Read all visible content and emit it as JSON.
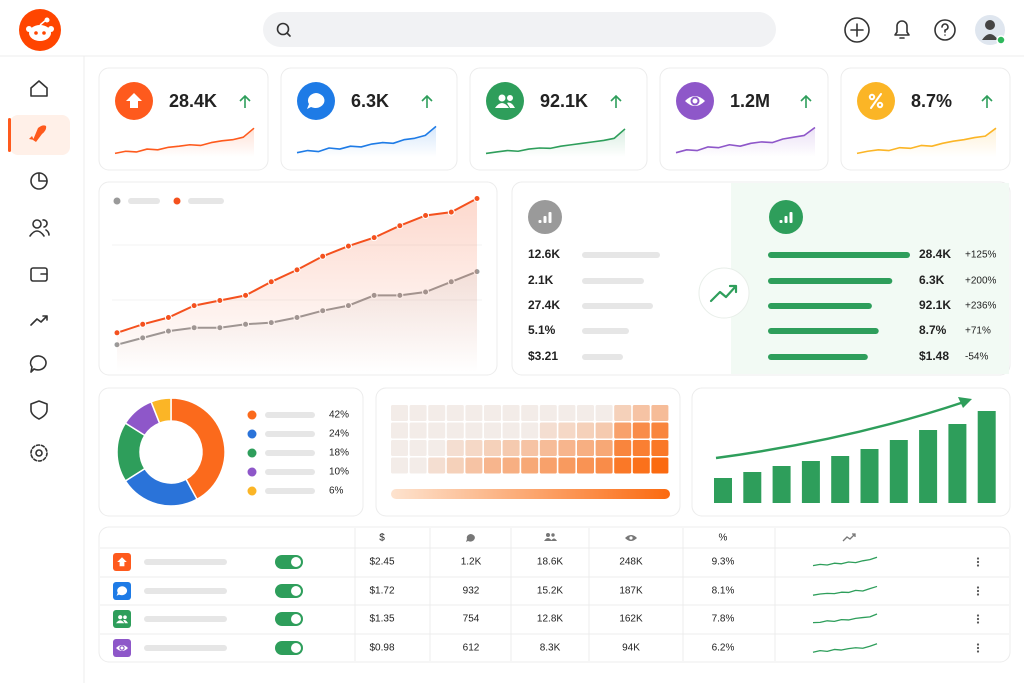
{
  "kpis": {
    "ylim": [
      0,
      100
    ],
    "cards": [
      {
        "value": "28.4K",
        "color": "#fe5a1d",
        "trend": [
          10,
          16,
          14,
          22,
          20,
          27,
          30,
          34,
          32,
          40,
          45,
          48,
          55,
          80
        ]
      },
      {
        "value": "6.3K",
        "color": "#1e7be6",
        "trend": [
          12,
          18,
          15,
          25,
          22,
          30,
          28,
          36,
          40,
          38,
          48,
          52,
          60,
          85
        ]
      },
      {
        "value": "92.1K",
        "color": "#2e9e5b",
        "trend": [
          10,
          14,
          18,
          16,
          22,
          25,
          24,
          30,
          34,
          38,
          42,
          46,
          52,
          78
        ]
      },
      {
        "value": "1.2M",
        "color": "#8e57c9",
        "trend": [
          12,
          20,
          18,
          28,
          26,
          34,
          30,
          38,
          42,
          40,
          50,
          55,
          60,
          82
        ]
      },
      {
        "value": "8.7%",
        "color": "#fbb526",
        "trend": [
          10,
          16,
          20,
          18,
          26,
          24,
          32,
          30,
          38,
          44,
          48,
          54,
          58,
          80
        ]
      }
    ]
  },
  "trend_chart": {
    "ylim": [
      0,
      100
    ],
    "series": [
      {
        "color": "#9a9a9a",
        "values": [
          9,
          13,
          17,
          19,
          19,
          21,
          22,
          25,
          29,
          32,
          38,
          38,
          40,
          46,
          52
        ]
      },
      {
        "color": "#f4511e",
        "values": [
          16,
          21,
          25,
          32,
          35,
          38,
          46,
          53,
          61,
          67,
          72,
          79,
          85,
          87,
          95
        ]
      }
    ]
  },
  "comparison": {
    "left": [
      "12.6K",
      "2.1K",
      "27.4K",
      "5.1%",
      "$3.21"
    ],
    "right": [
      {
        "value": "28.4K",
        "change": "+125%",
        "level": 100
      },
      {
        "value": "6.3K",
        "change": "+200%",
        "level": 87
      },
      {
        "value": "92.1K",
        "change": "+236%",
        "level": 72
      },
      {
        "value": "8.7%",
        "change": "+71%",
        "level": 77
      },
      {
        "value": "$1.48",
        "change": "-54%",
        "level": 69
      }
    ]
  },
  "donut": {
    "values": [
      42,
      24,
      18,
      10,
      6
    ],
    "value_labels": [
      "42%",
      "24%",
      "18%",
      "10%",
      "6%"
    ],
    "colors": [
      "#fb6a1c",
      "#2a73d9",
      "#2e9e5b",
      "#8e57c9",
      "#fbb526"
    ]
  },
  "heatmap": {
    "range": [
      0,
      100
    ],
    "rows": [
      [
        5,
        5,
        5,
        5,
        5,
        5,
        5,
        5,
        5,
        5,
        5,
        5,
        25,
        35,
        40
      ],
      [
        5,
        5,
        5,
        5,
        5,
        5,
        5,
        5,
        15,
        20,
        25,
        30,
        60,
        75,
        80
      ],
      [
        5,
        5,
        5,
        15,
        20,
        25,
        30,
        35,
        40,
        45,
        50,
        55,
        80,
        85,
        90
      ],
      [
        5,
        5,
        15,
        25,
        35,
        45,
        50,
        55,
        60,
        65,
        70,
        75,
        90,
        95,
        100
      ]
    ]
  },
  "growth_bars": {
    "ylim": [
      0,
      100
    ],
    "color": "#2e9e5b",
    "values": [
      25,
      31,
      37,
      42,
      47,
      54,
      63,
      73,
      79,
      92
    ]
  },
  "table": {
    "headers": {
      "price": "$",
      "rate": "%"
    },
    "trend_ylim": [
      0,
      100
    ],
    "rows": [
      {
        "icon_color": "#fe5a1d",
        "price": "$2.45",
        "comments": "1.2K",
        "members": "18.6K",
        "views": "248K",
        "rate": "9.3%",
        "trend": [
          20,
          30,
          25,
          40,
          35,
          50,
          45,
          60,
          70,
          90
        ]
      },
      {
        "icon_color": "#1e7be6",
        "price": "$1.72",
        "comments": "932",
        "members": "15.2K",
        "views": "187K",
        "rate": "8.1%",
        "trend": [
          15,
          25,
          30,
          28,
          40,
          38,
          55,
          50,
          70,
          88
        ]
      },
      {
        "icon_color": "#2e9e5b",
        "price": "$1.35",
        "comments": "754",
        "members": "12.8K",
        "views": "162K",
        "rate": "7.8%",
        "trend": [
          20,
          22,
          35,
          30,
          45,
          42,
          55,
          62,
          68,
          92
        ]
      },
      {
        "icon_color": "#8e57c9",
        "price": "$0.98",
        "comments": "612",
        "members": "8.3K",
        "views": "94K",
        "rate": "6.2%",
        "trend": [
          15,
          28,
          22,
          38,
          33,
          45,
          52,
          48,
          65,
          85
        ]
      }
    ]
  }
}
